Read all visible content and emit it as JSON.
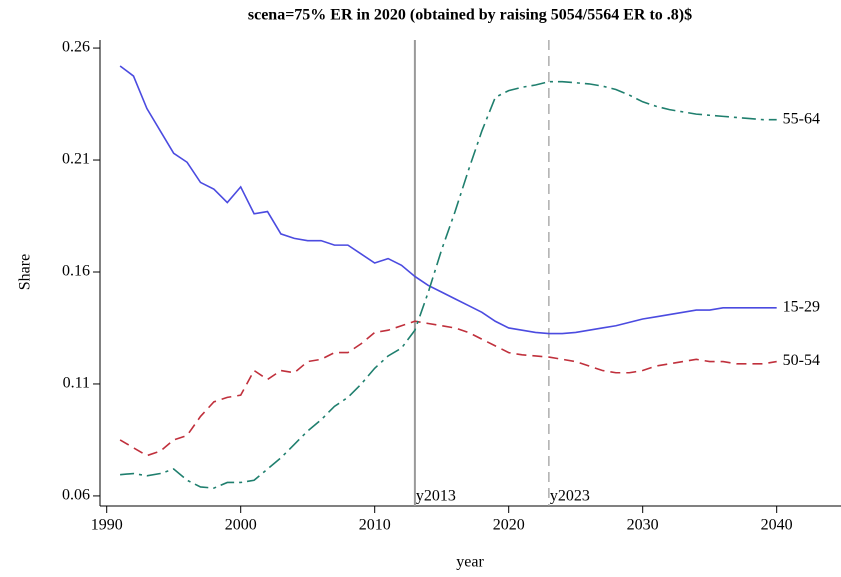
{
  "chart_data": {
    "type": "line",
    "title": "scena=75% ER in 2020 (obtained by raising 5054/5564 ER to .8)$",
    "x_label": "year",
    "y_label": "Share",
    "x": [
      1991,
      1992,
      1993,
      1994,
      1995,
      1996,
      1997,
      1998,
      1999,
      2000,
      2001,
      2002,
      2003,
      2004,
      2005,
      2006,
      2007,
      2008,
      2009,
      2010,
      2011,
      2012,
      2013,
      2014,
      2015,
      2016,
      2017,
      2018,
      2019,
      2020,
      2021,
      2022,
      2023,
      2024,
      2025,
      2026,
      2027,
      2028,
      2029,
      2030,
      2031,
      2032,
      2033,
      2034,
      2035,
      2036,
      2037,
      2038,
      2039,
      2040
    ],
    "series": [
      {
        "name": "15-29",
        "color": "#4b4be0",
        "dash": "solid",
        "values": [
          0.252,
          0.2475,
          0.233,
          0.223,
          0.213,
          0.209,
          0.2,
          0.197,
          0.191,
          0.198,
          0.186,
          0.187,
          0.177,
          0.175,
          0.174,
          0.174,
          0.172,
          0.172,
          0.168,
          0.164,
          0.166,
          0.163,
          0.158,
          0.154,
          0.151,
          0.148,
          0.145,
          0.142,
          0.138,
          0.135,
          0.134,
          0.133,
          0.1325,
          0.1325,
          0.133,
          0.134,
          0.135,
          0.136,
          0.1375,
          0.139,
          0.14,
          0.141,
          0.142,
          0.143,
          0.143,
          0.144,
          0.144,
          0.144,
          0.144,
          0.144
        ]
      },
      {
        "name": "50-54",
        "color": "#c0303c",
        "dash": "dashed",
        "values": [
          0.085,
          0.0815,
          0.078,
          0.08,
          0.085,
          0.087,
          0.0955,
          0.102,
          0.104,
          0.105,
          0.116,
          0.112,
          0.116,
          0.115,
          0.12,
          0.121,
          0.124,
          0.124,
          0.128,
          0.133,
          0.134,
          0.136,
          0.138,
          0.137,
          0.136,
          0.135,
          0.133,
          0.13,
          0.127,
          0.124,
          0.123,
          0.1225,
          0.122,
          0.121,
          0.12,
          0.118,
          0.116,
          0.115,
          0.115,
          0.116,
          0.118,
          0.119,
          0.12,
          0.121,
          0.12,
          0.12,
          0.119,
          0.119,
          0.119,
          0.12
        ]
      },
      {
        "name": "55-64",
        "color": "#1f7f6e",
        "dash": "dashdot",
        "values": [
          0.0695,
          0.07,
          0.069,
          0.07,
          0.072,
          0.067,
          0.064,
          0.0635,
          0.066,
          0.066,
          0.067,
          0.072,
          0.077,
          0.083,
          0.089,
          0.094,
          0.1,
          0.104,
          0.11,
          0.117,
          0.1225,
          0.126,
          0.134,
          0.151,
          0.17,
          0.187,
          0.2055,
          0.223,
          0.238,
          0.241,
          0.2425,
          0.2435,
          0.245,
          0.245,
          0.2445,
          0.244,
          0.243,
          0.2415,
          0.239,
          0.236,
          0.234,
          0.2325,
          0.2315,
          0.2305,
          0.23,
          0.2295,
          0.229,
          0.2285,
          0.228,
          0.228
        ]
      }
    ],
    "vlines": [
      {
        "x": 2013,
        "label": "y2013",
        "style": "solid"
      },
      {
        "x": 2023,
        "label": "y2023",
        "style": "dashed"
      }
    ],
    "xlim": [
      1989.5,
      2044.8
    ],
    "xticks": [
      1990,
      2000,
      2010,
      2020,
      2030,
      2040
    ],
    "ylim": [
      0.0555,
      0.2636
    ],
    "yticks": [
      0.06,
      0.11,
      0.16,
      0.21,
      0.26
    ]
  }
}
